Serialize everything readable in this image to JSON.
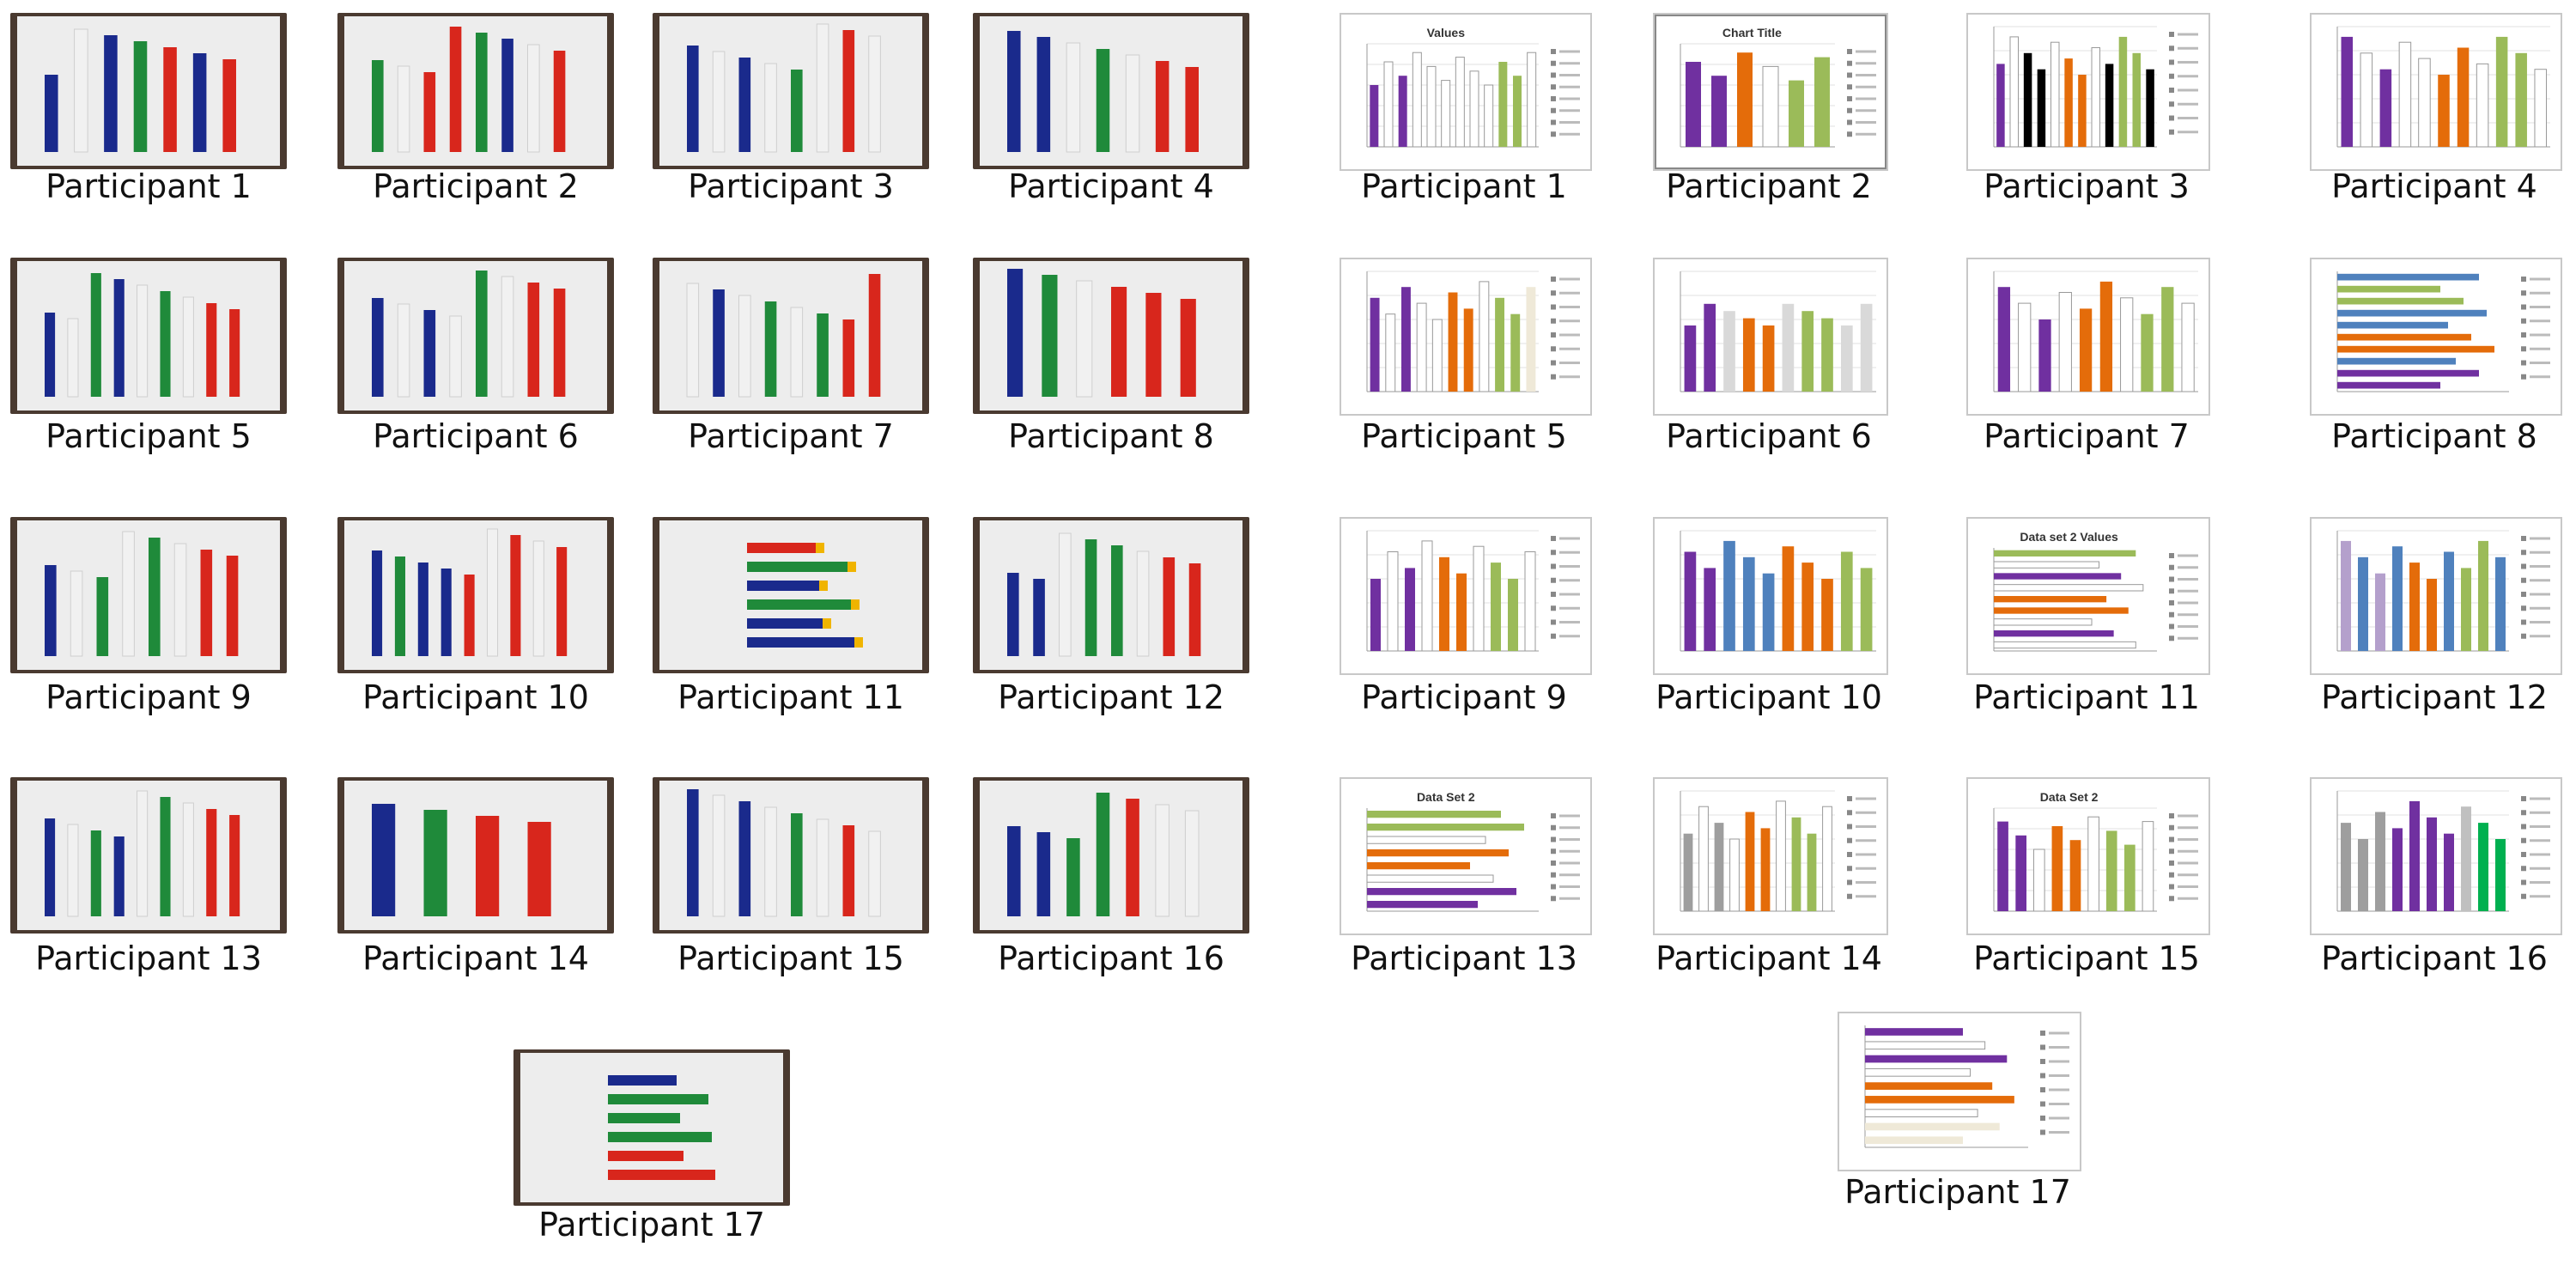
{
  "photo_captions": [
    "Participant 1",
    "Participant 2",
    "Participant 3",
    "Participant 4",
    "Participant 5",
    "Participant 6",
    "Participant 7",
    "Participant 8",
    "Participant 9",
    "Participant 10",
    "Participant 11",
    "Participant 12",
    "Participant 13",
    "Participant 14",
    "Participant 15",
    "Participant 16",
    "Participant 17"
  ],
  "screenshot_captions": [
    "Participant 1",
    "Participant 2",
    "Participant 3",
    "Participant 4",
    "Participant 5",
    "Participant 6",
    "Participant 7",
    "Participant 8",
    "Participant 9",
    "Participant 10",
    "Participant 11",
    "Participant 12",
    "Participant 13",
    "Participant 14",
    "Participant 15",
    "Participant 16",
    "Participant 17"
  ],
  "chart_titles": {
    "s1": "Values",
    "s2": "Chart Title",
    "s11": "Data set 2  Values",
    "s13": "Data Set 2",
    "s15": "Data Set 2"
  },
  "colors": {
    "blue": "#1a2a8c",
    "green": "#1f8a3a",
    "red": "#d8261c",
    "purple": "#7030a0",
    "orange": "#e46c0a",
    "light_green": "#9bbb59",
    "steel_blue": "#4f81bd",
    "black": "#000000",
    "gold": "#f0b400"
  }
}
